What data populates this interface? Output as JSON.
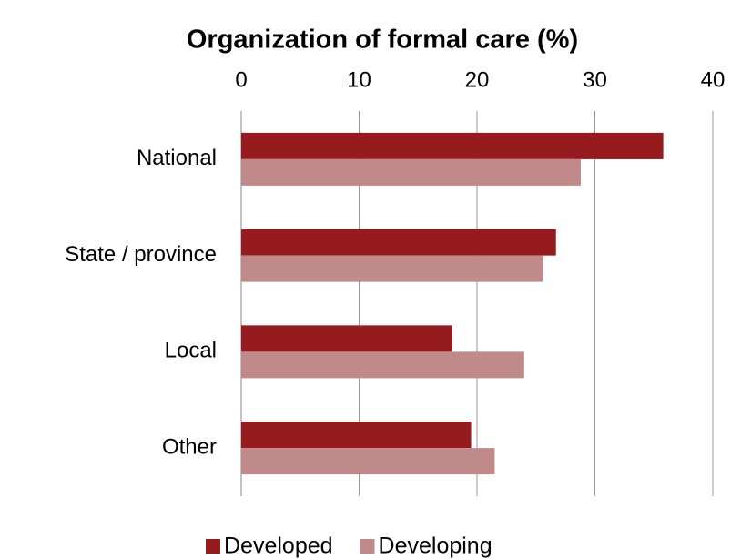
{
  "chart_data": {
    "type": "bar",
    "orientation": "horizontal",
    "title": "Organization of formal care (%)",
    "categories": [
      "National",
      "State / province",
      "Local",
      "Other"
    ],
    "series": [
      {
        "name": "Developed",
        "color": "#951b1e",
        "values": [
          35.8,
          26.7,
          17.9,
          19.5
        ]
      },
      {
        "name": "Developing",
        "color": "#c08a8a",
        "values": [
          28.8,
          25.6,
          24.0,
          21.5
        ]
      }
    ],
    "xlim": [
      0,
      40
    ],
    "xticks": [
      0,
      10,
      20,
      30,
      40
    ],
    "grid": true,
    "legend": "bottom"
  }
}
